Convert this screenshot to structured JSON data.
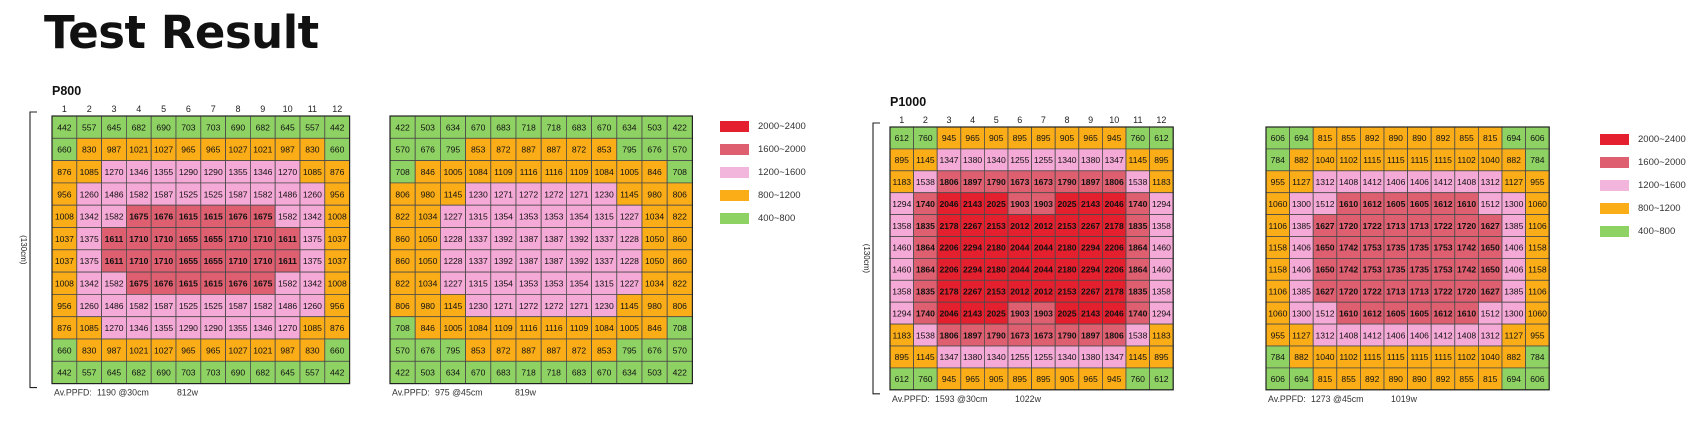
{
  "page": {
    "title": "Test Result"
  },
  "colors": {
    "red": "#e4202f",
    "dark_pink": "#dd5f70",
    "pink": "#f5a9d6",
    "orange": "#fbad18",
    "green": "#8fd264",
    "grid": "#4a4a4a",
    "text": "#111111"
  },
  "legend": [
    {
      "label": "2000~2400",
      "color": "#e4202f"
    },
    {
      "label": "1600~2000",
      "color": "#dd5f70"
    },
    {
      "label": "1200~1600",
      "color": "#f2b6dd"
    },
    {
      "label": "800~1200",
      "color": "#fbad18"
    },
    {
      "label": "400~800",
      "color": "#8fd264"
    }
  ],
  "chart_data": [
    {
      "type": "heatmap",
      "title": "P800",
      "ylabel": "(130cm)",
      "footer_label": "Av.PPFD:",
      "footer_value": "1190 @30cm",
      "footer_power": "812w",
      "columns": [
        "1",
        "2",
        "3",
        "4",
        "5",
        "6",
        "7",
        "8",
        "9",
        "10",
        "11",
        "12"
      ],
      "values": [
        [
          442,
          557,
          645,
          682,
          690,
          703,
          703,
          690,
          682,
          645,
          557,
          442
        ],
        [
          660,
          830,
          987,
          1021,
          1027,
          965,
          965,
          1027,
          1021,
          987,
          830,
          660
        ],
        [
          876,
          1085,
          1270,
          1346,
          1355,
          1290,
          1290,
          1355,
          1346,
          1270,
          1085,
          876
        ],
        [
          956,
          1260,
          1486,
          1582,
          1587,
          1525,
          1525,
          1587,
          1582,
          1486,
          1260,
          956
        ],
        [
          1008,
          1342,
          1582,
          1675,
          1676,
          1615,
          1615,
          1676,
          1675,
          1582,
          1342,
          1008
        ],
        [
          1037,
          1375,
          1611,
          1710,
          1710,
          1655,
          1655,
          1710,
          1710,
          1611,
          1375,
          1037
        ],
        [
          1037,
          1375,
          1611,
          1710,
          1710,
          1655,
          1655,
          1710,
          1710,
          1611,
          1375,
          1037
        ],
        [
          1008,
          1342,
          1582,
          1675,
          1676,
          1615,
          1615,
          1676,
          1675,
          1582,
          1342,
          1008
        ],
        [
          956,
          1260,
          1486,
          1582,
          1587,
          1525,
          1525,
          1587,
          1582,
          1486,
          1260,
          956
        ],
        [
          876,
          1085,
          1270,
          1346,
          1355,
          1290,
          1290,
          1355,
          1346,
          1270,
          1085,
          876
        ],
        [
          660,
          830,
          987,
          1021,
          1027,
          965,
          965,
          1027,
          1021,
          987,
          830,
          660
        ],
        [
          442,
          557,
          645,
          682,
          690,
          703,
          703,
          690,
          682,
          645,
          557,
          442
        ]
      ]
    },
    {
      "type": "heatmap",
      "title": "",
      "footer_label": "Av.PPFD:",
      "footer_value": "975 @45cm",
      "footer_power": "819w",
      "values": [
        [
          422,
          503,
          634,
          670,
          683,
          718,
          718,
          683,
          670,
          634,
          503,
          422
        ],
        [
          570,
          676,
          795,
          853,
          872,
          887,
          887,
          872,
          853,
          795,
          676,
          570
        ],
        [
          708,
          846,
          1005,
          1084,
          1109,
          1116,
          1116,
          1109,
          1084,
          1005,
          846,
          708
        ],
        [
          806,
          980,
          1145,
          1230,
          1271,
          1272,
          1272,
          1271,
          1230,
          1145,
          980,
          806
        ],
        [
          822,
          1034,
          1227,
          1315,
          1354,
          1353,
          1353,
          1354,
          1315,
          1227,
          1034,
          822
        ],
        [
          860,
          1050,
          1228,
          1337,
          1392,
          1387,
          1387,
          1392,
          1337,
          1228,
          1050,
          860
        ],
        [
          860,
          1050,
          1228,
          1337,
          1392,
          1387,
          1387,
          1392,
          1337,
          1228,
          1050,
          860
        ],
        [
          822,
          1034,
          1227,
          1315,
          1354,
          1353,
          1353,
          1354,
          1315,
          1227,
          1034,
          822
        ],
        [
          806,
          980,
          1145,
          1230,
          1271,
          1272,
          1272,
          1271,
          1230,
          1145,
          980,
          806
        ],
        [
          708,
          846,
          1005,
          1084,
          1109,
          1116,
          1116,
          1109,
          1084,
          1005,
          846,
          708
        ],
        [
          570,
          676,
          795,
          853,
          872,
          887,
          887,
          872,
          853,
          795,
          676,
          570
        ],
        [
          422,
          503,
          634,
          670,
          683,
          718,
          718,
          683,
          670,
          634,
          503,
          422
        ]
      ]
    },
    {
      "type": "heatmap",
      "title": "P1000",
      "ylabel": "(130cm)",
      "footer_label": "Av.PPFD:",
      "footer_value": "1593 @30cm",
      "footer_power": "1022w",
      "columns": [
        "1",
        "2",
        "3",
        "4",
        "5",
        "6",
        "7",
        "8",
        "9",
        "10",
        "11",
        "12"
      ],
      "values": [
        [
          612,
          760,
          945,
          965,
          905,
          895,
          895,
          905,
          965,
          945,
          760,
          612
        ],
        [
          895,
          1145,
          1347,
          1380,
          1340,
          1255,
          1255,
          1340,
          1380,
          1347,
          1145,
          895
        ],
        [
          1183,
          1538,
          1806,
          1897,
          1790,
          1673,
          1673,
          1790,
          1897,
          1806,
          1538,
          1183
        ],
        [
          1294,
          1740,
          2046,
          2143,
          2025,
          1903,
          1903,
          2025,
          2143,
          2046,
          1740,
          1294
        ],
        [
          1358,
          1835,
          2178,
          2267,
          2153,
          2012,
          2012,
          2153,
          2267,
          2178,
          1835,
          1358
        ],
        [
          1460,
          1864,
          2206,
          2294,
          2180,
          2044,
          2044,
          2180,
          2294,
          2206,
          1864,
          1460
        ],
        [
          1460,
          1864,
          2206,
          2294,
          2180,
          2044,
          2044,
          2180,
          2294,
          2206,
          1864,
          1460
        ],
        [
          1358,
          1835,
          2178,
          2267,
          2153,
          2012,
          2012,
          2153,
          2267,
          2178,
          1835,
          1358
        ],
        [
          1294,
          1740,
          2046,
          2143,
          2025,
          1903,
          1903,
          2025,
          2143,
          2046,
          1740,
          1294
        ],
        [
          1183,
          1538,
          1806,
          1897,
          1790,
          1673,
          1673,
          1790,
          1897,
          1806,
          1538,
          1183
        ],
        [
          895,
          1145,
          1347,
          1380,
          1340,
          1255,
          1255,
          1340,
          1380,
          1347,
          1145,
          895
        ],
        [
          612,
          760,
          945,
          965,
          905,
          895,
          895,
          905,
          965,
          945,
          760,
          612
        ]
      ]
    },
    {
      "type": "heatmap",
      "title": "",
      "footer_label": "Av.PPFD:",
      "footer_value": "1273 @45cm",
      "footer_power": "1019w",
      "values": [
        [
          606,
          694,
          815,
          855,
          892,
          890,
          890,
          892,
          855,
          815,
          694,
          606
        ],
        [
          784,
          882,
          1040,
          1102,
          1115,
          1115,
          1115,
          1115,
          1102,
          1040,
          882,
          784
        ],
        [
          955,
          1127,
          1312,
          1408,
          1412,
          1406,
          1406,
          1412,
          1408,
          1312,
          1127,
          955
        ],
        [
          1060,
          1300,
          1512,
          1610,
          1612,
          1605,
          1605,
          1612,
          1610,
          1512,
          1300,
          1060
        ],
        [
          1106,
          1385,
          1627,
          1720,
          1722,
          1713,
          1713,
          1722,
          1720,
          1627,
          1385,
          1106
        ],
        [
          1158,
          1406,
          1650,
          1742,
          1753,
          1735,
          1735,
          1753,
          1742,
          1650,
          1406,
          1158
        ],
        [
          1158,
          1406,
          1650,
          1742,
          1753,
          1735,
          1735,
          1753,
          1742,
          1650,
          1406,
          1158
        ],
        [
          1106,
          1385,
          1627,
          1720,
          1722,
          1713,
          1713,
          1722,
          1720,
          1627,
          1385,
          1106
        ],
        [
          1060,
          1300,
          1512,
          1610,
          1612,
          1605,
          1605,
          1612,
          1610,
          1512,
          1300,
          1060
        ],
        [
          955,
          1127,
          1312,
          1408,
          1412,
          1406,
          1406,
          1412,
          1408,
          1312,
          1127,
          955
        ],
        [
          784,
          882,
          1040,
          1102,
          1115,
          1115,
          1115,
          1115,
          1102,
          1040,
          882,
          784
        ],
        [
          606,
          694,
          815,
          855,
          892,
          890,
          890,
          892,
          855,
          815,
          694,
          606
        ]
      ]
    }
  ]
}
